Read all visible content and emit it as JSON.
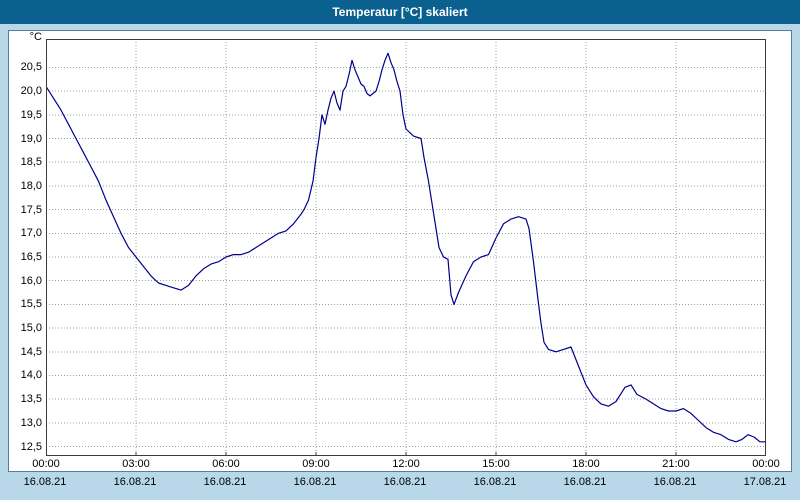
{
  "window": {
    "title": "Temperatur [°C] skaliert"
  },
  "colors": {
    "titlebar_bg": "#0a618f",
    "titlebar_text": "#ffffff",
    "page_bg": "#b8d7e9",
    "panel_bg": "#ffffff",
    "grid": "#9aa0a6",
    "plot_border": "#3c3c3c",
    "line": "#00008b",
    "label_text": "#000000"
  },
  "chart_data": {
    "type": "line",
    "title": "Temperatur [°C] skaliert",
    "xlabel": "",
    "ylabel": "°C",
    "x_range": [
      0,
      24
    ],
    "ylim": [
      12.3,
      21.1
    ],
    "grid": true,
    "legend": false,
    "y_ticks": [
      {
        "value": 20.5,
        "label": "20,5"
      },
      {
        "value": 20.0,
        "label": "20,0"
      },
      {
        "value": 19.5,
        "label": "19,5"
      },
      {
        "value": 19.0,
        "label": "19,0"
      },
      {
        "value": 18.5,
        "label": "18,5"
      },
      {
        "value": 18.0,
        "label": "18,0"
      },
      {
        "value": 17.5,
        "label": "17,5"
      },
      {
        "value": 17.0,
        "label": "17,0"
      },
      {
        "value": 16.5,
        "label": "16,5"
      },
      {
        "value": 16.0,
        "label": "16,0"
      },
      {
        "value": 15.5,
        "label": "15,5"
      },
      {
        "value": 15.0,
        "label": "15,0"
      },
      {
        "value": 14.5,
        "label": "14,5"
      },
      {
        "value": 14.0,
        "label": "14,0"
      },
      {
        "value": 13.5,
        "label": "13,5"
      },
      {
        "value": 13.0,
        "label": "13,0"
      },
      {
        "value": 12.5,
        "label": "12,5"
      }
    ],
    "x_ticks": [
      {
        "value": 0,
        "time": "00:00",
        "date": "16.08.21"
      },
      {
        "value": 3,
        "time": "03:00",
        "date": "16.08.21"
      },
      {
        "value": 6,
        "time": "06:00",
        "date": "16.08.21"
      },
      {
        "value": 9,
        "time": "09:00",
        "date": "16.08.21"
      },
      {
        "value": 12,
        "time": "12:00",
        "date": "16.08.21"
      },
      {
        "value": 15,
        "time": "15:00",
        "date": "16.08.21"
      },
      {
        "value": 18,
        "time": "18:00",
        "date": "16.08.21"
      },
      {
        "value": 21,
        "time": "21:00",
        "date": "16.08.21"
      },
      {
        "value": 24,
        "time": "00:00",
        "date": "17.08.21"
      }
    ],
    "series": [
      {
        "name": "Temperatur",
        "color": "#00008b",
        "points": [
          [
            0,
            20.1
          ],
          [
            0.25,
            19.85
          ],
          [
            0.5,
            19.6
          ],
          [
            0.75,
            19.3
          ],
          [
            1,
            19.0
          ],
          [
            1.25,
            18.7
          ],
          [
            1.5,
            18.4
          ],
          [
            1.75,
            18.1
          ],
          [
            2,
            17.7
          ],
          [
            2.25,
            17.35
          ],
          [
            2.5,
            17.0
          ],
          [
            2.75,
            16.7
          ],
          [
            3,
            16.5
          ],
          [
            3.25,
            16.3
          ],
          [
            3.5,
            16.1
          ],
          [
            3.75,
            15.95
          ],
          [
            4,
            15.9
          ],
          [
            4.25,
            15.85
          ],
          [
            4.5,
            15.8
          ],
          [
            4.75,
            15.9
          ],
          [
            5,
            16.1
          ],
          [
            5.25,
            16.25
          ],
          [
            5.5,
            16.35
          ],
          [
            5.75,
            16.4
          ],
          [
            6,
            16.5
          ],
          [
            6.25,
            16.55
          ],
          [
            6.5,
            16.55
          ],
          [
            6.75,
            16.6
          ],
          [
            7,
            16.7
          ],
          [
            7.25,
            16.8
          ],
          [
            7.5,
            16.9
          ],
          [
            7.75,
            17.0
          ],
          [
            8,
            17.05
          ],
          [
            8.25,
            17.2
          ],
          [
            8.5,
            17.4
          ],
          [
            8.6,
            17.5
          ],
          [
            8.75,
            17.7
          ],
          [
            8.9,
            18.1
          ],
          [
            9,
            18.6
          ],
          [
            9.1,
            19.0
          ],
          [
            9.2,
            19.5
          ],
          [
            9.3,
            19.3
          ],
          [
            9.4,
            19.6
          ],
          [
            9.5,
            19.85
          ],
          [
            9.6,
            20.0
          ],
          [
            9.7,
            19.75
          ],
          [
            9.8,
            19.6
          ],
          [
            9.9,
            20.0
          ],
          [
            10,
            20.1
          ],
          [
            10.1,
            20.35
          ],
          [
            10.2,
            20.65
          ],
          [
            10.3,
            20.45
          ],
          [
            10.4,
            20.3
          ],
          [
            10.5,
            20.15
          ],
          [
            10.6,
            20.1
          ],
          [
            10.7,
            19.95
          ],
          [
            10.8,
            19.9
          ],
          [
            10.9,
            19.95
          ],
          [
            11,
            20.0
          ],
          [
            11.1,
            20.2
          ],
          [
            11.2,
            20.45
          ],
          [
            11.3,
            20.65
          ],
          [
            11.4,
            20.8
          ],
          [
            11.5,
            20.6
          ],
          [
            11.6,
            20.45
          ],
          [
            11.7,
            20.2
          ],
          [
            11.8,
            20.0
          ],
          [
            11.9,
            19.5
          ],
          [
            12,
            19.2
          ],
          [
            12.25,
            19.05
          ],
          [
            12.5,
            19.0
          ],
          [
            12.6,
            18.6
          ],
          [
            12.75,
            18.1
          ],
          [
            13,
            17.1
          ],
          [
            13.1,
            16.7
          ],
          [
            13.25,
            16.5
          ],
          [
            13.4,
            16.45
          ],
          [
            13.5,
            15.7
          ],
          [
            13.6,
            15.5
          ],
          [
            13.75,
            15.75
          ],
          [
            14,
            16.1
          ],
          [
            14.25,
            16.4
          ],
          [
            14.5,
            16.5
          ],
          [
            14.75,
            16.55
          ],
          [
            15,
            16.9
          ],
          [
            15.25,
            17.2
          ],
          [
            15.5,
            17.3
          ],
          [
            15.75,
            17.35
          ],
          [
            16,
            17.3
          ],
          [
            16.1,
            17.1
          ],
          [
            16.25,
            16.4
          ],
          [
            16.4,
            15.6
          ],
          [
            16.5,
            15.1
          ],
          [
            16.6,
            14.7
          ],
          [
            16.75,
            14.55
          ],
          [
            17,
            14.5
          ],
          [
            17.25,
            14.55
          ],
          [
            17.5,
            14.6
          ],
          [
            17.75,
            14.2
          ],
          [
            18,
            13.8
          ],
          [
            18.25,
            13.55
          ],
          [
            18.5,
            13.4
          ],
          [
            18.75,
            13.35
          ],
          [
            19,
            13.45
          ],
          [
            19.15,
            13.6
          ],
          [
            19.3,
            13.75
          ],
          [
            19.5,
            13.8
          ],
          [
            19.7,
            13.6
          ],
          [
            20,
            13.5
          ],
          [
            20.25,
            13.4
          ],
          [
            20.5,
            13.3
          ],
          [
            20.75,
            13.25
          ],
          [
            21,
            13.25
          ],
          [
            21.25,
            13.3
          ],
          [
            21.5,
            13.2
          ],
          [
            21.75,
            13.05
          ],
          [
            22,
            12.9
          ],
          [
            22.25,
            12.8
          ],
          [
            22.5,
            12.75
          ],
          [
            22.75,
            12.65
          ],
          [
            23,
            12.6
          ],
          [
            23.2,
            12.65
          ],
          [
            23.4,
            12.75
          ],
          [
            23.6,
            12.7
          ],
          [
            23.8,
            12.6
          ],
          [
            24,
            12.6
          ]
        ]
      }
    ]
  }
}
